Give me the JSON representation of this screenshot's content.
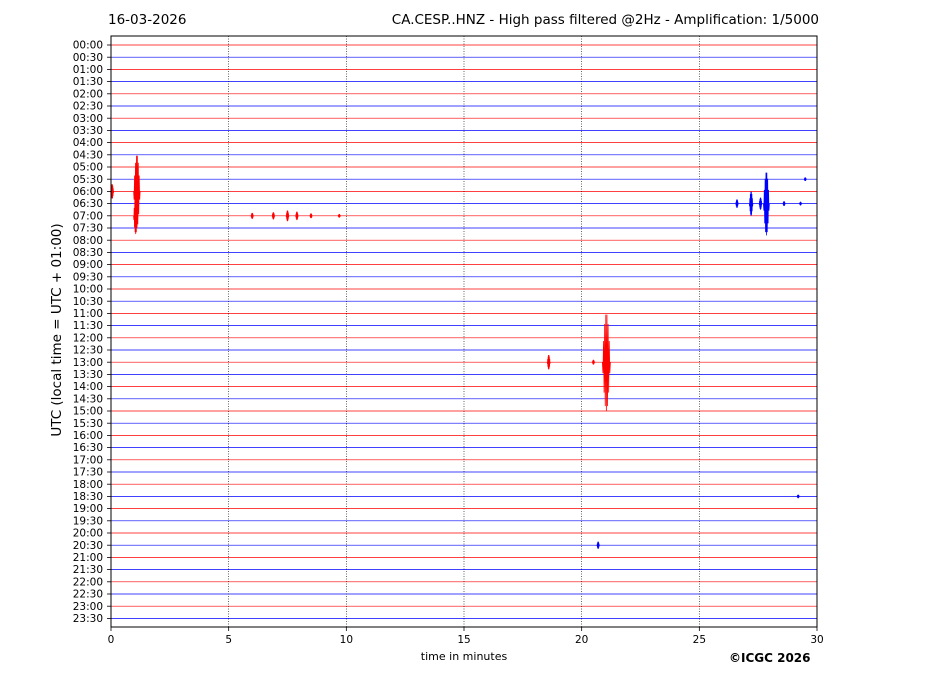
{
  "header": {
    "date": "16-03-2026",
    "title": "CA.CESP..HNZ - High pass filtered @2Hz - Amplification: 1/5000"
  },
  "footer": {
    "copyright": "©ICGC 2026"
  },
  "chart_data": {
    "type": "line",
    "title": "CA.CESP..HNZ - High pass filtered @2Hz - Amplification: 1/5000",
    "xlabel": "time in minutes",
    "ylabel": "UTC (local time = UTC + 01:00)",
    "xlim": [
      0,
      30
    ],
    "xticks": [
      0,
      5,
      10,
      15,
      20,
      25,
      30
    ],
    "x_gridlines": [
      5,
      10,
      15,
      20,
      25
    ],
    "grid": "vertical dotted",
    "row_labels": [
      "00:00",
      "00:30",
      "01:00",
      "01:30",
      "02:00",
      "02:30",
      "03:00",
      "03:30",
      "04:00",
      "04:30",
      "05:00",
      "05:30",
      "06:00",
      "06:30",
      "07:00",
      "07:30",
      "08:00",
      "08:30",
      "09:00",
      "09:30",
      "10:00",
      "10:30",
      "11:00",
      "11:30",
      "12:00",
      "12:30",
      "13:00",
      "13:30",
      "14:00",
      "14:30",
      "15:00",
      "15:30",
      "16:00",
      "16:30",
      "17:00",
      "17:30",
      "18:00",
      "18:30",
      "19:00",
      "19:30",
      "20:00",
      "20:30",
      "21:00",
      "21:30",
      "22:00",
      "22:30",
      "23:00",
      "23:30"
    ],
    "trace_colors": [
      "#ff0000",
      "#0000ff"
    ],
    "events": [
      {
        "row": "06:00",
        "minute": 0.05,
        "amplitude": 0.6,
        "color": "#ff0000"
      },
      {
        "row": "06:00",
        "minute": 1.1,
        "amplitude": 3.0,
        "color": "#ff0000"
      },
      {
        "row": "07:00",
        "minute": 1.05,
        "amplitude": 1.5,
        "color": "#ff0000"
      },
      {
        "row": "07:00",
        "minute": 6.0,
        "amplitude": 0.25,
        "color": "#ff0000"
      },
      {
        "row": "07:00",
        "minute": 6.9,
        "amplitude": 0.3,
        "color": "#ff0000"
      },
      {
        "row": "07:00",
        "minute": 7.5,
        "amplitude": 0.45,
        "color": "#ff0000"
      },
      {
        "row": "07:00",
        "minute": 7.9,
        "amplitude": 0.35,
        "color": "#ff0000"
      },
      {
        "row": "07:00",
        "minute": 8.5,
        "amplitude": 0.2,
        "color": "#ff0000"
      },
      {
        "row": "07:00",
        "minute": 9.7,
        "amplitude": 0.15,
        "color": "#ff0000"
      },
      {
        "row": "06:30",
        "minute": 26.6,
        "amplitude": 0.35,
        "color": "#0000ff"
      },
      {
        "row": "06:30",
        "minute": 27.2,
        "amplitude": 1.0,
        "color": "#0000ff"
      },
      {
        "row": "06:30",
        "minute": 27.6,
        "amplitude": 0.5,
        "color": "#0000ff"
      },
      {
        "row": "06:30",
        "minute": 27.85,
        "amplitude": 2.6,
        "color": "#0000ff"
      },
      {
        "row": "06:30",
        "minute": 28.6,
        "amplitude": 0.2,
        "color": "#0000ff"
      },
      {
        "row": "06:30",
        "minute": 29.3,
        "amplitude": 0.15,
        "color": "#0000ff"
      },
      {
        "row": "05:30",
        "minute": 29.5,
        "amplitude": 0.15,
        "color": "#0000ff"
      },
      {
        "row": "13:00",
        "minute": 18.6,
        "amplitude": 0.6,
        "color": "#ff0000"
      },
      {
        "row": "13:00",
        "minute": 20.5,
        "amplitude": 0.2,
        "color": "#ff0000"
      },
      {
        "row": "13:00",
        "minute": 21.05,
        "amplitude": 4.0,
        "color": "#ff0000"
      },
      {
        "row": "20:30",
        "minute": 20.7,
        "amplitude": 0.3,
        "color": "#0000ff"
      },
      {
        "row": "18:30",
        "minute": 29.2,
        "amplitude": 0.15,
        "color": "#0000ff"
      }
    ]
  }
}
